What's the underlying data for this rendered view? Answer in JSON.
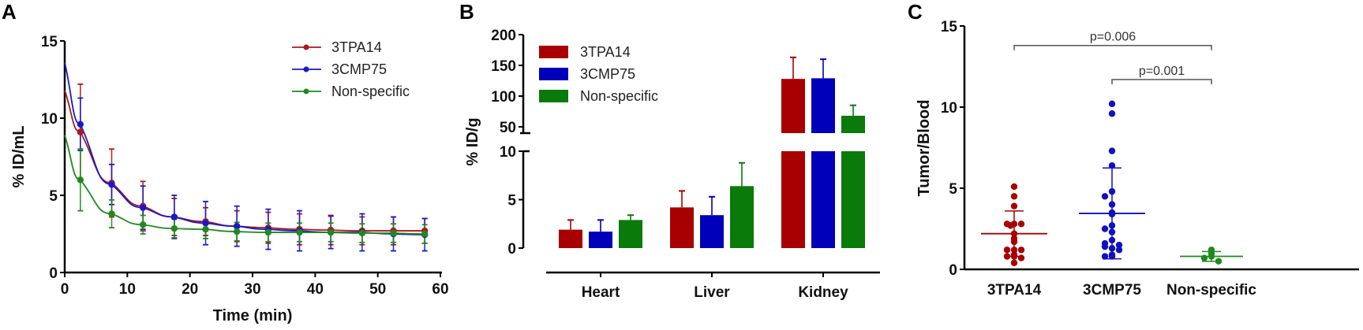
{
  "figure": {
    "panels": [
      "A",
      "B",
      "C"
    ]
  },
  "chart_data": [
    {
      "panel": "A",
      "type": "line",
      "title": "",
      "xlabel": "Time (min)",
      "ylabel": "% ID/mL",
      "xlim": [
        0,
        60
      ],
      "ylim": [
        0,
        15
      ],
      "xticks": [
        0,
        10,
        20,
        30,
        40,
        50,
        60
      ],
      "yticks": [
        0,
        5,
        10,
        15
      ],
      "legend_position": "top-right",
      "grid": false,
      "series": [
        {
          "name": "3TPA14",
          "color": "#b01818",
          "x": [
            2.5,
            7.5,
            12.5,
            17.5,
            22.5,
            27.5,
            32.5,
            37.5,
            42.5,
            47.5,
            52.5,
            57.5
          ],
          "y": [
            9.1,
            5.8,
            4.3,
            3.6,
            3.3,
            3.0,
            2.9,
            2.8,
            2.75,
            2.7,
            2.7,
            2.7
          ],
          "err": [
            3.1,
            2.2,
            1.6,
            1.2,
            0.9,
            1.0,
            1.0,
            1.0,
            0.95,
            0.9,
            0.9,
            0.8
          ],
          "fit_y0": 11.8
        },
        {
          "name": "3CMP75",
          "color": "#1a1ac8",
          "x": [
            2.5,
            7.5,
            12.5,
            17.5,
            22.5,
            27.5,
            32.5,
            37.5,
            42.5,
            47.5,
            52.5,
            57.5
          ],
          "y": [
            9.6,
            5.7,
            4.2,
            3.6,
            3.2,
            3.0,
            2.8,
            2.7,
            2.6,
            2.6,
            2.5,
            2.45
          ],
          "err": [
            1.7,
            1.3,
            1.4,
            1.4,
            1.4,
            1.3,
            1.3,
            1.3,
            1.05,
            1.2,
            1.1,
            1.05
          ],
          "fit_y0": 13.6
        },
        {
          "name": "Non-specific",
          "color": "#1e8a1e",
          "x": [
            2.5,
            7.5,
            12.5,
            17.5,
            22.5,
            27.5,
            32.5,
            37.5,
            42.5,
            47.5,
            52.5,
            57.5
          ],
          "y": [
            6.0,
            3.8,
            3.1,
            2.85,
            2.8,
            2.65,
            2.6,
            2.6,
            2.6,
            2.55,
            2.55,
            2.5
          ],
          "err": [
            2.0,
            0.9,
            0.6,
            0.6,
            0.6,
            0.6,
            0.6,
            0.6,
            0.6,
            0.6,
            0.6,
            0.6
          ],
          "fit_y0": 8.9
        }
      ]
    },
    {
      "panel": "B",
      "type": "bar",
      "title": "",
      "xlabel": "",
      "ylabel": "% ID/g",
      "categories": [
        "Heart",
        "Liver",
        "Kidney"
      ],
      "y_axis_break": true,
      "ylim_lower": [
        0,
        10
      ],
      "yticks_lower": [
        0,
        5,
        10
      ],
      "ylim_upper": [
        50,
        200
      ],
      "yticks_upper": [
        50,
        100,
        150,
        200
      ],
      "legend_position": "top-left",
      "grid": false,
      "series": [
        {
          "name": "3TPA14",
          "color": "#a80000",
          "values": [
            1.9,
            4.2,
            128
          ],
          "err": [
            1.0,
            1.7,
            35
          ]
        },
        {
          "name": "3CMP75",
          "color": "#0000bb",
          "values": [
            1.7,
            3.4,
            129
          ],
          "err": [
            1.2,
            1.9,
            31
          ]
        },
        {
          "name": "Non-specific",
          "color": "#0a7a0a",
          "values": [
            2.9,
            6.4,
            68
          ],
          "err": [
            0.5,
            2.4,
            17
          ]
        }
      ]
    },
    {
      "panel": "C",
      "type": "scatter",
      "title": "",
      "xlabel": "",
      "ylabel": "Tumor/Blood",
      "categories": [
        "3TPA14",
        "3CMP75",
        "Non-specific"
      ],
      "ylim": [
        0,
        15
      ],
      "yticks": [
        0,
        5,
        10,
        15
      ],
      "grid": false,
      "groups": [
        {
          "name": "3TPA14",
          "color": "#a80000",
          "points": [
            5.1,
            4.5,
            3.9,
            2.8,
            2.8,
            2.8,
            2.7,
            2.2,
            1.9,
            1.7,
            1.2,
            1.2,
            1.2,
            0.8,
            0.8,
            0.9,
            0.7,
            0.4
          ],
          "mean": 2.2,
          "sd_low": 0.8,
          "sd_high": 3.6
        },
        {
          "name": "3CMP75",
          "color": "#1010c0",
          "points": [
            10.2,
            9.6,
            7.3,
            6.4,
            4.8,
            4.5,
            4.0,
            3.5,
            3.4,
            2.7,
            2.5,
            2.3,
            1.8,
            1.6,
            1.5,
            1.3,
            1.4,
            1.2,
            0.9,
            0.8,
            0.8
          ],
          "mean": 3.45,
          "sd_low": 0.65,
          "sd_high": 6.25
        },
        {
          "name": "Non-specific",
          "color": "#1e8a1e",
          "points": [
            1.2,
            1.0,
            0.8,
            0.7,
            0.5
          ],
          "mean": 0.8,
          "sd_low": 0.5,
          "sd_high": 1.1
        }
      ],
      "annotations": [
        {
          "text": "p=0.006",
          "from": "3TPA14",
          "to": "Non-specific",
          "level": 13.8
        },
        {
          "text": "p=0.001",
          "from": "3CMP75",
          "to": "Non-specific",
          "level": 11.7
        }
      ]
    }
  ]
}
